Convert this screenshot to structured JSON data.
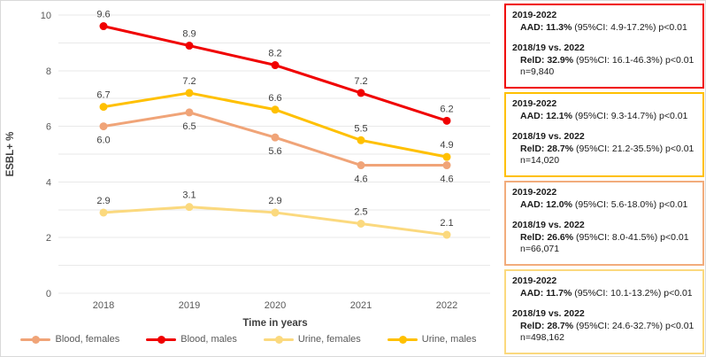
{
  "chart_data": {
    "type": "line",
    "title": "",
    "xlabel": "Time in years",
    "ylabel": "ESBL+ %",
    "ylim": [
      0,
      10
    ],
    "yticks": [
      0,
      2,
      4,
      6,
      8,
      10
    ],
    "gridline_step": 1,
    "grid": true,
    "legend_position": "bottom",
    "categories": [
      "2018",
      "2019",
      "2020",
      "2021",
      "2022"
    ],
    "series": [
      {
        "name": "Blood, females",
        "color": "#F0A478",
        "values": [
          6.0,
          6.5,
          5.6,
          4.6,
          4.6
        ],
        "label_position": "below"
      },
      {
        "name": "Blood, males",
        "color": "#F00000",
        "values": [
          9.6,
          8.9,
          8.2,
          7.2,
          6.2
        ],
        "label_position": "above"
      },
      {
        "name": "Urine, females",
        "color": "#FBD97E",
        "values": [
          2.9,
          3.1,
          2.9,
          2.5,
          2.1
        ],
        "label_position": "above"
      },
      {
        "name": "Urine, males",
        "color": "#FFC000",
        "values": [
          6.7,
          7.2,
          6.6,
          5.5,
          4.9
        ],
        "label_position": "above"
      }
    ],
    "draw_order": [
      0,
      2,
      3,
      1
    ]
  },
  "boxes": [
    {
      "border_color": "#F00000",
      "period1": "2019-2022",
      "stat1_bold": "AAD: 11.3%",
      "stat1_rest": " (95%CI: 4.9-17.2%) p<0.01",
      "period2": "2018/19 vs. 2022",
      "stat2_bold": "RelD: 32.9%",
      "stat2_rest": " (95%CI: 16.1-46.3%) p<0.01",
      "n": "n=9,840"
    },
    {
      "border_color": "#FFC000",
      "period1": "2019-2022",
      "stat1_bold": "AAD: 12.1%",
      "stat1_rest": " (95%CI: 9.3-14.7%) p<0.01",
      "period2": "2018/19 vs. 2022",
      "stat2_bold": "RelD: 28.7%",
      "stat2_rest": " (95%CI: 21.2-35.5%) p<0.01",
      "n": "n=14,020"
    },
    {
      "border_color": "#F2AC7C",
      "period1": "2019-2022",
      "stat1_bold": "AAD: 12.0%",
      "stat1_rest": " (95%CI: 5.6-18.0%) p<0.01",
      "period2": "2018/19 vs. 2022",
      "stat2_bold": "RelD: 26.6%",
      "stat2_rest": " (95%CI: 8.0-41.5%) p<0.01",
      "n": "n=66,071"
    },
    {
      "border_color": "#FBD97E",
      "period1": "2019-2022",
      "stat1_bold": "AAD: 11.7%",
      "stat1_rest": " (95%CI: 10.1-13.2%) p<0.01",
      "period2": "2018/19 vs. 2022",
      "stat2_bold": "RelD: 28.7%",
      "stat2_rest": " (95%CI: 24.6-32.7%) p<0.01",
      "n": "n=498,162"
    }
  ]
}
